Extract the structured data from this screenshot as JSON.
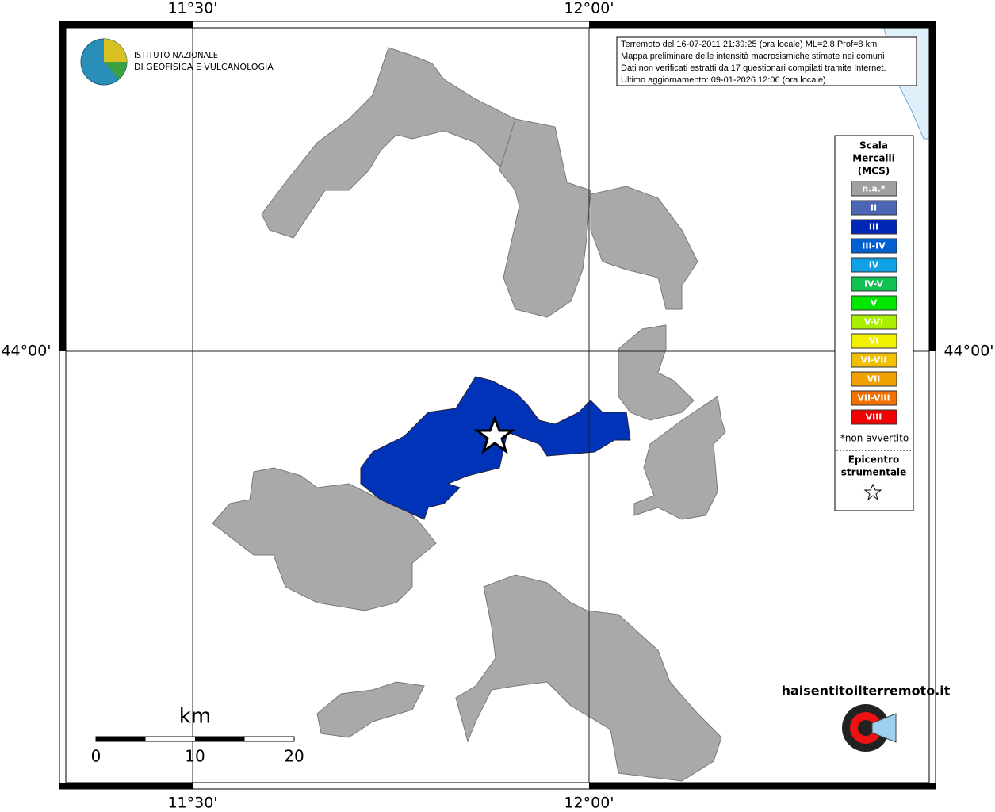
{
  "header": {
    "institute": [
      "ISTITUTO NAZIONALE",
      "DI GEOFISICA E VULCANOLOGIA"
    ]
  },
  "info": [
    "Terremoto del 16-07-2011 21:39:25 (ora locale) ML=2.8 Prof=8 km",
    "Mappa preliminare delle intensità macrosismiche stimate nei comuni",
    "Dati non verificati estratti da 17 questionari compilati tramite Internet.",
    "Ultimo aggiornamento: 09-01-2026 12:06 (ora locale)"
  ],
  "axes": {
    "lon": [
      "11°30'",
      "12°00'"
    ],
    "lat": [
      "44°00'"
    ]
  },
  "legend": {
    "title": [
      "Scala",
      "Mercalli",
      "(MCS)"
    ],
    "items": [
      {
        "label": "n.a.*",
        "color": "#a0a0a0"
      },
      {
        "label": "II",
        "color": "#4a66b5"
      },
      {
        "label": "III",
        "color": "#0026b5"
      },
      {
        "label": "III-IV",
        "color": "#0060d0"
      },
      {
        "label": "IV",
        "color": "#10a0e6"
      },
      {
        "label": "IV-V",
        "color": "#10c050"
      },
      {
        "label": "V",
        "color": "#00e600"
      },
      {
        "label": "V-VI",
        "color": "#aaee00"
      },
      {
        "label": "VI",
        "color": "#f0f000"
      },
      {
        "label": "VI-VII",
        "color": "#f0c000"
      },
      {
        "label": "VII",
        "color": "#f0a000"
      },
      {
        "label": "VII-VIII",
        "color": "#f07000"
      },
      {
        "label": "VIII",
        "color": "#f00000"
      }
    ],
    "note": "*non avvertito",
    "epicenter": [
      "Epicentro",
      "strumentale"
    ]
  },
  "scale_bar": {
    "unit": "km",
    "ticks": [
      0,
      10,
      20
    ]
  },
  "logo": "haisentitoilterremoto.it"
}
